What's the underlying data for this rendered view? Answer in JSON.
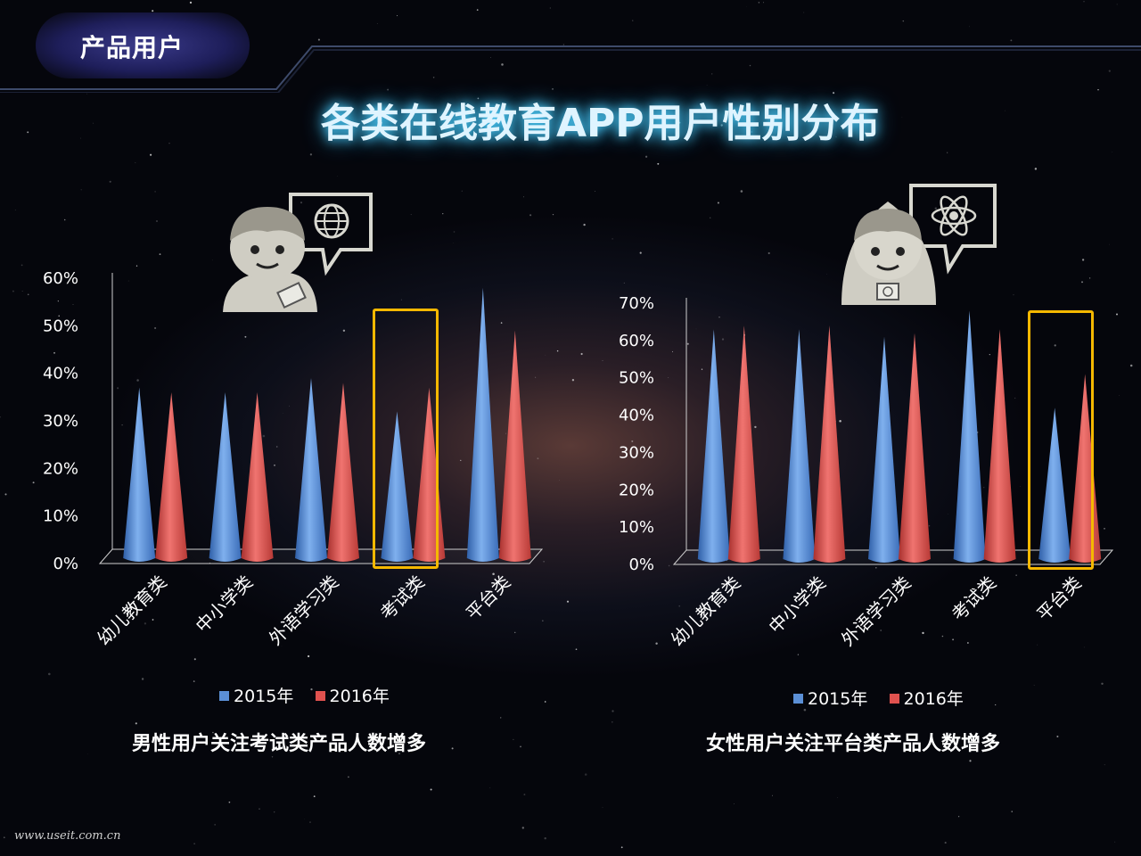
{
  "header": {
    "section_tag": "产品用户"
  },
  "title": "各类在线教育APP用户性别分布",
  "legend": {
    "series_2015": "2015年",
    "series_2016": "2016年"
  },
  "colors": {
    "series_2015": "#5b8fd6",
    "series_2016": "#e0524f",
    "highlight": "#f5b800",
    "title_glow": "#4fd2ff"
  },
  "icons": {
    "male": "male-user-globe-icon",
    "female": "female-user-atom-icon"
  },
  "chart_data": [
    {
      "type": "bar",
      "categories": [
        "幼儿教育类",
        "中小学类",
        "外语学习类",
        "考试类",
        "平台类"
      ],
      "series": [
        {
          "name": "2015年",
          "values": [
            37,
            36,
            39,
            32,
            58
          ]
        },
        {
          "name": "2016年",
          "values": [
            36,
            36,
            38,
            37,
            49
          ]
        }
      ],
      "ylim": [
        0,
        60
      ],
      "yticks": [
        "60%",
        "50%",
        "40%",
        "30%",
        "20%",
        "10%",
        "0%"
      ],
      "highlight_category": "考试类",
      "caption": "男性用户关注考试类产品人数增多"
    },
    {
      "type": "bar",
      "categories": [
        "幼儿教育类",
        "中小学类",
        "外语学习类",
        "考试类",
        "平台类"
      ],
      "series": [
        {
          "name": "2015年",
          "values": [
            63,
            63,
            61,
            68,
            42
          ]
        },
        {
          "name": "2016年",
          "values": [
            64,
            64,
            62,
            63,
            51
          ]
        }
      ],
      "ylim": [
        0,
        70
      ],
      "yticks": [
        "70%",
        "60%",
        "50%",
        "40%",
        "30%",
        "20%",
        "10%",
        "0%"
      ],
      "highlight_category": "平台类",
      "caption": "女性用户关注平台类产品人数增多"
    }
  ],
  "footer": {
    "watermark": "www.useit.com.cn"
  }
}
